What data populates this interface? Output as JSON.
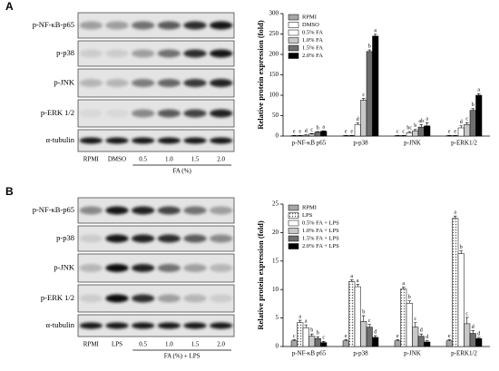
{
  "blots": [
    {
      "label": "A",
      "rows": [
        "p-NF-κB-p65",
        "p-p38",
        "p-JNK",
        "p-ERK 1/2",
        "α-tubulin"
      ],
      "lanes": [
        "RPMI",
        "DMSO",
        "0.5",
        "1.0",
        "1.5",
        "2.0"
      ],
      "group": "FA (%)"
    },
    {
      "label": "B",
      "rows": [
        "p-NF-κB-p65",
        "p-p38",
        "p-JNK",
        "p-ERK 1/2",
        "α-tubulin"
      ],
      "lanes": [
        "RPMI",
        "LPS",
        "0.5",
        "1.0",
        "1.5",
        "2.0"
      ],
      "group": "FA (%) + LPS"
    }
  ],
  "chart_data": [
    {
      "type": "bar",
      "ylabel": "Relative protein expression (fold)",
      "categories": [
        "p-NF-κB p65",
        "p-p38",
        "p-JNK",
        "p-ERK1/2"
      ],
      "ylim": [
        0,
        300
      ],
      "yticks": [
        0,
        50,
        100,
        150,
        200,
        250,
        300
      ],
      "legend": "top-left",
      "series": [
        {
          "name": "RPMI",
          "color": "#a6a6a6",
          "values": [
            1,
            1,
            1,
            1
          ],
          "errors": [
            0.5,
            0.5,
            0.5,
            0.5
          ],
          "letters": [
            "e",
            "e",
            "c",
            "e"
          ]
        },
        {
          "name": "DMSO",
          "color": "#ffffff",
          "values": [
            1,
            1,
            1,
            1
          ],
          "errors": [
            0.5,
            0.5,
            0.5,
            0.5
          ],
          "letters": [
            "e",
            "e",
            "c",
            "e"
          ]
        },
        {
          "name": "0.5% FA",
          "color": "#ffffff",
          "values": [
            2,
            28,
            8,
            20
          ],
          "errors": [
            1,
            4,
            3,
            5
          ],
          "letters": [
            "d",
            "d",
            "bc",
            "d"
          ]
        },
        {
          "name": "1.0% FA",
          "color": "#c8c8c8",
          "values": [
            5,
            88,
            13,
            28
          ],
          "errors": [
            1,
            4,
            3,
            5
          ],
          "letters": [
            "c",
            "c",
            "b",
            "c"
          ]
        },
        {
          "name": "1.5% FA",
          "color": "#6e6e6e",
          "values": [
            10,
            207,
            22,
            63
          ],
          "errors": [
            1,
            4,
            6,
            4
          ],
          "letters": [
            "b",
            "b",
            "ab",
            "b"
          ]
        },
        {
          "name": "2.0% FA",
          "color": "#000000",
          "values": [
            12,
            245,
            25,
            100
          ],
          "errors": [
            1,
            5,
            8,
            4
          ],
          "letters": [
            "a",
            "a",
            "a",
            "a"
          ]
        }
      ]
    },
    {
      "type": "bar",
      "ylabel": "Relative protein expression (fold)",
      "categories": [
        "p-NF-κB p65",
        "p-p38",
        "p-JNK",
        "p-ERK1/2"
      ],
      "ylim": [
        0,
        25
      ],
      "yticks": [
        0,
        5,
        10,
        15,
        20,
        25
      ],
      "legend": "top-left",
      "series": [
        {
          "name": "RPMI",
          "color": "#a6a6a6",
          "values": [
            1,
            1,
            1,
            1
          ],
          "errors": [
            0.2,
            0.2,
            0.2,
            0.2
          ],
          "letters": [
            "c",
            "e",
            "e",
            "e"
          ]
        },
        {
          "name": "LPS",
          "color": "#ffffff",
          "pattern": "dots",
          "values": [
            4.2,
            11.4,
            10.1,
            22.5
          ],
          "errors": [
            0.4,
            0.3,
            0.3,
            0.4
          ],
          "letters": [
            "a",
            "a",
            "a",
            "a"
          ]
        },
        {
          "name": "0.5% FA + LPS",
          "color": "#ffffff",
          "values": [
            3.3,
            10.5,
            7.6,
            16.3
          ],
          "errors": [
            0.5,
            0.4,
            0.4,
            0.5
          ],
          "letters": [
            "a",
            "a",
            "b",
            "b"
          ]
        },
        {
          "name": "1.0% FA + LPS",
          "color": "#c8c8c8",
          "values": [
            1.8,
            4.4,
            3.4,
            4.0
          ],
          "errors": [
            0.4,
            1.0,
            0.8,
            1.1
          ],
          "letters": [
            "b",
            "b",
            "c",
            "c"
          ]
        },
        {
          "name": "1.5% FA + LPS",
          "color": "#6e6e6e",
          "values": [
            1.4,
            3.4,
            1.8,
            2.3
          ],
          "errors": [
            0.3,
            0.5,
            0.4,
            0.5
          ],
          "letters": [
            "b",
            "c",
            "d",
            "d"
          ]
        },
        {
          "name": "2.0% FA + LPS",
          "color": "#000000",
          "values": [
            0.7,
            1.6,
            0.8,
            1.4
          ],
          "errors": [
            0.2,
            0.3,
            0.2,
            0.2
          ],
          "letters": [
            "c",
            "d",
            "d",
            "d"
          ]
        }
      ]
    }
  ]
}
